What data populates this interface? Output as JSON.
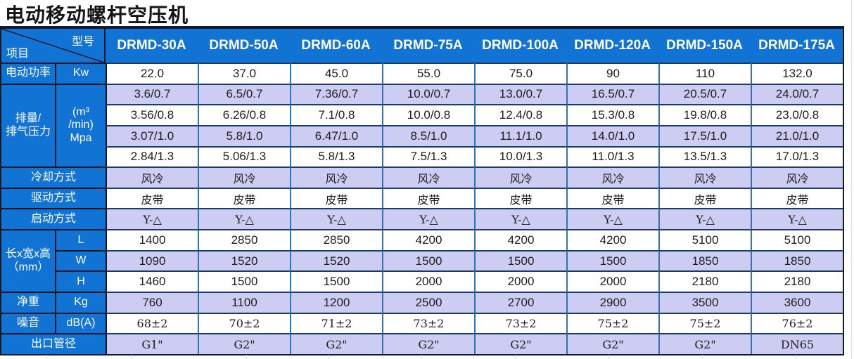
{
  "title": "电动移动螺杆空压机",
  "colors": {
    "header_blue": "#1173d4",
    "row_lavender": "#cdcdf4",
    "h_border": "#1b3c66",
    "v_border": "#2e75b6"
  },
  "corner": {
    "model": "型号",
    "item": "项目"
  },
  "models": [
    "DRMD-30A",
    "DRMD-50A",
    "DRMD-60A",
    "DRMD-75A",
    "DRMD-100A",
    "DRMD-120A",
    "DRMD-150A",
    "DRMD-175A"
  ],
  "power": {
    "label": "电动功率",
    "unit": "Kw",
    "values": [
      "22.0",
      "37.0",
      "45.0",
      "55.0",
      "75.0",
      "90",
      "110",
      "132.0"
    ]
  },
  "displacement": {
    "label": [
      "排量/",
      "排气压力"
    ],
    "unit": [
      "(m³",
      "/min)",
      "Mpa"
    ],
    "rows": [
      [
        "3.6/0.7",
        "6.5/0.7",
        "7.36/0.7",
        "10.0/0.7",
        "13.0/0.7",
        "16.5/0.7",
        "20.5/0.7",
        "24.0/0.7"
      ],
      [
        "3.56/0.8",
        "6.26/0.8",
        "7.1/0.8",
        "10.0/0.8",
        "12.4/0.8",
        "15.3/0.8",
        "19.8/0.8",
        "23.0/0.8"
      ],
      [
        "3.07/1.0",
        "5.8/1.0",
        "6.47/1.0",
        "8.5/1.0",
        "11.1/1.0",
        "14.0/1.0",
        "17.5/1.0",
        "21.0/1.0"
      ],
      [
        "2.84/1.3",
        "5.06/1.3",
        "5.8/1.3",
        "7.5/1.3",
        "10.0/1.3",
        "11.0/1.3",
        "13.5/1.3",
        "17.0/1.3"
      ]
    ]
  },
  "cooling": {
    "label": "冷却方式",
    "values": [
      "风冷",
      "风冷",
      "风冷",
      "风冷",
      "风冷",
      "风冷",
      "风冷",
      "风冷"
    ]
  },
  "drive": {
    "label": "驱动方式",
    "values": [
      "皮带",
      "皮带",
      "皮带",
      "皮带",
      "皮带",
      "皮带",
      "皮带",
      "皮带"
    ]
  },
  "start": {
    "label": "启动方式",
    "values": [
      "Y-△",
      "Y-△",
      "Y-△",
      "Y-△",
      "Y-△",
      "Y-△",
      "Y-△",
      "Y-△"
    ]
  },
  "dimensions": {
    "label": [
      "长x宽x高",
      "（mm）"
    ],
    "subrows": [
      {
        "unit": "L",
        "values": [
          "1400",
          "2850",
          "2850",
          "4200",
          "4200",
          "4200",
          "5100",
          "5100"
        ]
      },
      {
        "unit": "W",
        "values": [
          "1090",
          "1520",
          "1520",
          "1500",
          "1500",
          "1500",
          "1850",
          "1850"
        ]
      },
      {
        "unit": "H",
        "values": [
          "1460",
          "1500",
          "1500",
          "2000",
          "2000",
          "2000",
          "2180",
          "2180"
        ]
      }
    ]
  },
  "weight": {
    "label": "净重",
    "unit": "Kg",
    "values": [
      "760",
      "1100",
      "1200",
      "2500",
      "2700",
      "2900",
      "3500",
      "3600"
    ]
  },
  "noise": {
    "label": "噪音",
    "unit": "dB(A)",
    "values": [
      "68±2",
      "70±2",
      "71±2",
      "73±2",
      "73±2",
      "75±2",
      "75±2",
      "76±2"
    ]
  },
  "outlet": {
    "label": "出口管径",
    "values": [
      "G1\"",
      "G2\"",
      "G2\"",
      "G2\"",
      "G2\"",
      "G2\"",
      "G2\"",
      "DN65"
    ]
  }
}
